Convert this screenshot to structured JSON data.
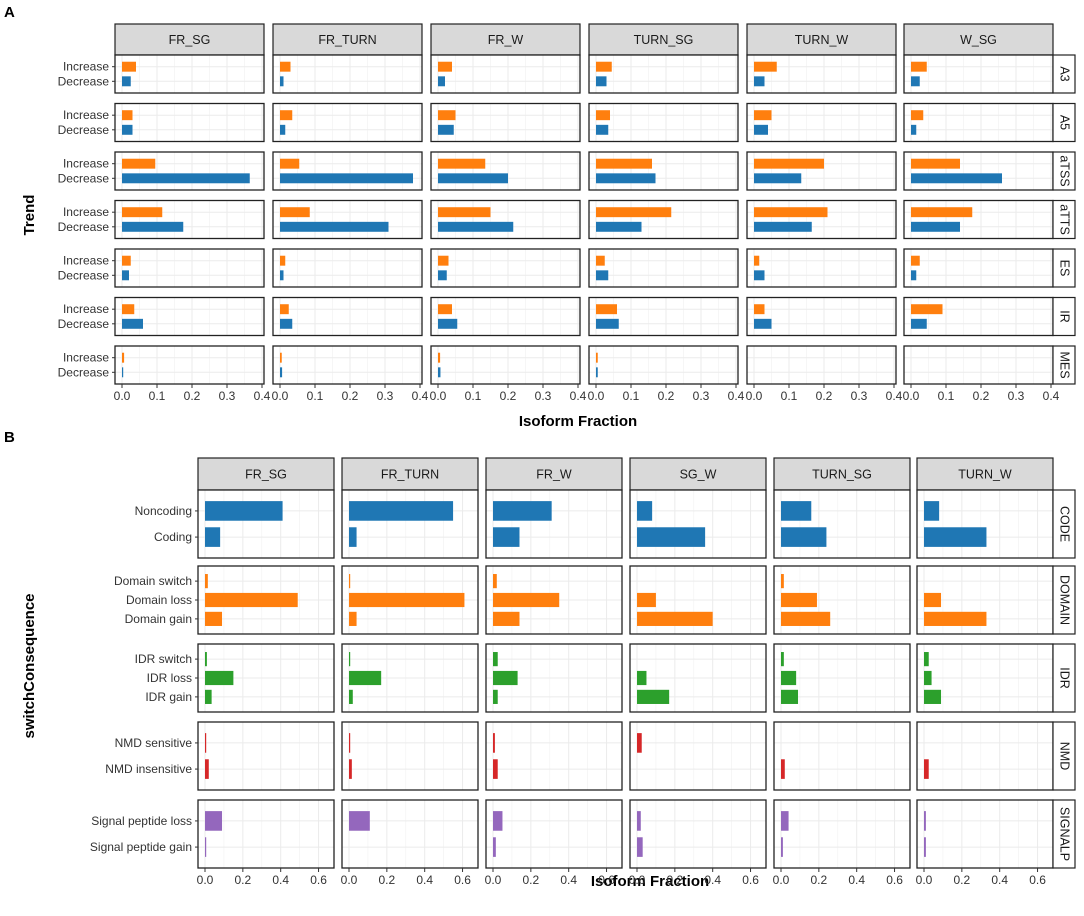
{
  "colors": {
    "increase": "#ff7f0e",
    "decrease": "#1f77b4",
    "CODE": "#1f77b4",
    "DOMAIN": "#ff7f0e",
    "IDR": "#2ca02c",
    "NMD": "#d62728",
    "SIGNALP": "#9467bd",
    "strip_fill": "#d9d9d9",
    "grid": "#ebebeb"
  },
  "chart_data": [
    {
      "panel": "A",
      "type": "bar",
      "orientation": "horizontal",
      "facet_cols": [
        "FR_SG",
        "FR_TURN",
        "FR_W",
        "TURN_SG",
        "TURN_W",
        "W_SG"
      ],
      "facet_rows": [
        "A3",
        "A5",
        "aTSS",
        "aTTS",
        "ES",
        "IR",
        "MES"
      ],
      "categories": [
        "Increase",
        "Decrease"
      ],
      "xlabel": "Isoform Fraction",
      "ylabel": "Trend",
      "xlim": [
        0,
        0.4
      ],
      "xticks": [
        0.0,
        0.1,
        0.2,
        0.3,
        0.4
      ],
      "tick_labels": [
        "0.0",
        "0.1",
        "0.2",
        "0.3",
        "0.4"
      ],
      "values": {
        "A3": {
          "Increase": [
            0.04,
            0.03,
            0.04,
            0.045,
            0.065,
            0.045
          ],
          "Decrease": [
            0.025,
            0.01,
            0.02,
            0.03,
            0.03,
            0.025
          ]
        },
        "A5": {
          "Increase": [
            0.03,
            0.035,
            0.05,
            0.04,
            0.05,
            0.035
          ],
          "Decrease": [
            0.03,
            0.015,
            0.045,
            0.035,
            0.04,
            0.015
          ]
        },
        "aTSS": {
          "Increase": [
            0.095,
            0.055,
            0.135,
            0.16,
            0.2,
            0.14
          ],
          "Decrease": [
            0.365,
            0.38,
            0.2,
            0.17,
            0.135,
            0.26
          ]
        },
        "aTTS": {
          "Increase": [
            0.115,
            0.085,
            0.15,
            0.215,
            0.21,
            0.175
          ],
          "Decrease": [
            0.175,
            0.31,
            0.215,
            0.13,
            0.165,
            0.14
          ]
        },
        "ES": {
          "Increase": [
            0.025,
            0.015,
            0.03,
            0.025,
            0.015,
            0.025
          ],
          "Decrease": [
            0.02,
            0.01,
            0.025,
            0.035,
            0.03,
            0.015
          ]
        },
        "IR": {
          "Increase": [
            0.035,
            0.025,
            0.04,
            0.06,
            0.03,
            0.09
          ],
          "Decrease": [
            0.06,
            0.035,
            0.055,
            0.065,
            0.05,
            0.045
          ]
        },
        "MES": {
          "Increase": [
            0.006,
            0.005,
            0.006,
            0.005,
            0,
            0
          ],
          "Decrease": [
            0.003,
            0.006,
            0.007,
            0.005,
            0,
            0
          ]
        }
      }
    },
    {
      "panel": "B",
      "type": "bar",
      "orientation": "horizontal",
      "facet_cols": [
        "FR_SG",
        "FR_TURN",
        "FR_W",
        "SG_W",
        "TURN_SG",
        "TURN_W"
      ],
      "facet_rows": [
        "CODE",
        "DOMAIN",
        "IDR",
        "NMD",
        "SIGNALP"
      ],
      "row_categories": {
        "CODE": [
          "Noncoding",
          "Coding"
        ],
        "DOMAIN": [
          "Domain switch",
          "Domain loss",
          "Domain gain"
        ],
        "IDR": [
          "IDR switch",
          "IDR loss",
          "IDR gain"
        ],
        "NMD": [
          "NMD sensitive",
          "NMD insensitive"
        ],
        "SIGNALP": [
          "Signal peptide loss",
          "Signal peptide gain"
        ]
      },
      "xlabel": "Isoform Fraction",
      "ylabel": "switchConsequence",
      "xlim": [
        0,
        0.65
      ],
      "xticks": [
        0.0,
        0.2,
        0.4,
        0.6
      ],
      "tick_labels": [
        "0.0",
        "0.2",
        "0.4",
        "0.6"
      ],
      "values": {
        "CODE": {
          "Noncoding": [
            0.41,
            0.55,
            0.31,
            0.08,
            0.16,
            0.08
          ],
          "Coding": [
            0.08,
            0.04,
            0.14,
            0.36,
            0.24,
            0.33
          ]
        },
        "DOMAIN": {
          "Domain switch": [
            0.015,
            0.005,
            0.02,
            0,
            0.015,
            0
          ],
          "Domain loss": [
            0.49,
            0.61,
            0.35,
            0.1,
            0.19,
            0.09
          ],
          "Domain gain": [
            0.09,
            0.04,
            0.14,
            0.4,
            0.26,
            0.33
          ]
        },
        "IDR": {
          "IDR switch": [
            0.01,
            0.005,
            0.025,
            0,
            0.015,
            0.025
          ],
          "IDR loss": [
            0.15,
            0.17,
            0.13,
            0.05,
            0.08,
            0.04
          ],
          "IDR gain": [
            0.035,
            0.02,
            0.025,
            0.17,
            0.09,
            0.09
          ]
        },
        "NMD": {
          "NMD sensitive": [
            0.005,
            0.005,
            0.01,
            0.025,
            0,
            0
          ],
          "NMD insensitive": [
            0.02,
            0.015,
            0.025,
            0,
            0.02,
            0.025
          ]
        },
        "SIGNALP": {
          "Signal peptide loss": [
            0.09,
            0.11,
            0.05,
            0.02,
            0.04,
            0.01
          ],
          "Signal peptide gain": [
            0.005,
            0,
            0.015,
            0.03,
            0.01,
            0.01
          ]
        }
      }
    }
  ],
  "labels": {
    "panel_a": "A",
    "panel_b": "B",
    "a_xlabel": "Isoform Fraction",
    "a_ylabel": "Trend",
    "b_xlabel": "Isoform Fraction",
    "b_ylabel": "switchConsequence"
  }
}
